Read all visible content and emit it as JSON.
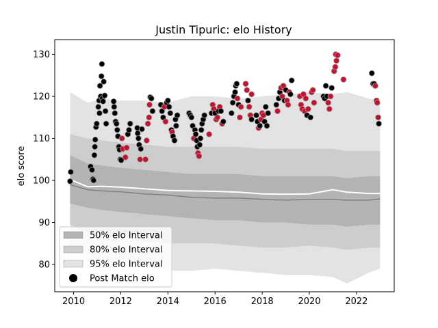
{
  "chart_data": {
    "type": "scatter",
    "title": "Justin Tipuric: elo History",
    "xlabel": "",
    "ylabel": "elo score",
    "xlim": [
      2009.2,
      2023.6
    ],
    "ylim": [
      73.5,
      133.5
    ],
    "xticks": [
      2010,
      2012,
      2014,
      2016,
      2018,
      2020,
      2022
    ],
    "yticks": [
      80,
      90,
      100,
      110,
      120,
      130
    ],
    "grid": false,
    "legend_position": "lower-left",
    "colors": {
      "band95": "#e3e3e3",
      "band80": "#cdcdcd",
      "band50": "#b3b3b3",
      "median": "#808080",
      "mean": "#ffffff",
      "post_match": "#000000",
      "win_point": "#c8102e",
      "point_edge": "#9a9a9a"
    },
    "legend": [
      {
        "label": "50% elo Interval",
        "color": "#b3b3b3"
      },
      {
        "label": "80% elo Interval",
        "color": "#cdcdcd"
      },
      {
        "label": "95% elo Interval",
        "color": "#e3e3e3"
      },
      {
        "label": "Post Match elo",
        "color": "#000000"
      }
    ],
    "bands": {
      "x": [
        2009.85,
        2010.6,
        2011.2,
        2012.0,
        2013.0,
        2014.0,
        2015.0,
        2016.0,
        2017.0,
        2018.0,
        2019.0,
        2020.0,
        2021.0,
        2021.6,
        2022.5,
        2023.0
      ],
      "p025": [
        84.5,
        82.0,
        81.0,
        80.0,
        79.5,
        78.5,
        78.5,
        79.0,
        78.5,
        78.0,
        77.5,
        77.5,
        77.0,
        75.5,
        78.0,
        79.0
      ],
      "p10": [
        89.5,
        87.5,
        87.0,
        86.5,
        85.5,
        85.0,
        85.0,
        85.0,
        84.5,
        84.0,
        84.0,
        84.5,
        84.0,
        83.5,
        84.0,
        84.0
      ],
      "p25": [
        94.5,
        93.5,
        93.0,
        92.5,
        92.0,
        91.5,
        91.0,
        90.5,
        90.5,
        90.0,
        90.0,
        89.5,
        89.5,
        89.0,
        89.5,
        89.5
      ],
      "median": [
        99.0,
        97.8,
        97.5,
        97.3,
        96.8,
        96.5,
        96.0,
        95.8,
        95.8,
        95.5,
        95.3,
        95.5,
        95.5,
        95.3,
        95.3,
        95.6
      ],
      "mean": [
        100.2,
        98.5,
        98.6,
        98.4,
        98.0,
        97.6,
        97.5,
        97.4,
        97.2,
        96.8,
        96.7,
        96.8,
        97.8,
        97.2,
        96.9,
        96.9
      ],
      "p75": [
        106.0,
        104.0,
        103.5,
        103.0,
        102.5,
        102.0,
        101.5,
        101.5,
        101.5,
        101.0,
        101.0,
        101.0,
        101.0,
        100.5,
        101.0,
        101.0
      ],
      "p90": [
        111.0,
        110.0,
        109.5,
        109.0,
        108.5,
        108.0,
        108.0,
        108.0,
        108.0,
        107.5,
        107.5,
        107.5,
        107.5,
        107.0,
        107.0,
        107.0
      ],
      "p975": [
        121.0,
        118.5,
        119.5,
        119.0,
        119.0,
        118.5,
        120.0,
        120.0,
        119.5,
        120.0,
        120.5,
        121.0,
        120.5,
        121.0,
        119.5,
        119.0
      ]
    },
    "series": [
      {
        "name": "Post Match elo",
        "points": [
          [
            2009.85,
            99.8,
            0
          ],
          [
            2009.88,
            102.0,
            0
          ],
          [
            2010.72,
            103.3,
            0
          ],
          [
            2010.78,
            102.5,
            0
          ],
          [
            2010.82,
            100.3,
            0
          ],
          [
            2010.85,
            100.0,
            0
          ],
          [
            2010.88,
            106.0,
            0
          ],
          [
            2010.9,
            108.0,
            0
          ],
          [
            2010.92,
            109.7,
            0
          ],
          [
            2010.95,
            112.7,
            0
          ],
          [
            2010.98,
            113.5,
            0
          ],
          [
            2011.05,
            117.5,
            0
          ],
          [
            2011.08,
            119.0,
            0
          ],
          [
            2011.1,
            116.0,
            0
          ],
          [
            2011.12,
            122.5,
            0
          ],
          [
            2011.15,
            120.0,
            0
          ],
          [
            2011.18,
            124.8,
            0
          ],
          [
            2011.2,
            127.7,
            0
          ],
          [
            2011.22,
            119.5,
            0
          ],
          [
            2011.25,
            118.8,
            0
          ],
          [
            2011.28,
            123.5,
            0
          ],
          [
            2011.32,
            120.2,
            0
          ],
          [
            2011.35,
            116.5,
            0
          ],
          [
            2011.38,
            113.5,
            0
          ],
          [
            2011.7,
            118.8,
            0
          ],
          [
            2011.72,
            117.5,
            0
          ],
          [
            2011.75,
            116.0,
            0
          ],
          [
            2011.78,
            114.0,
            0
          ],
          [
            2011.82,
            113.5,
            0
          ],
          [
            2011.85,
            112.0,
            0
          ],
          [
            2011.88,
            110.5,
            0
          ],
          [
            2011.92,
            108.0,
            0
          ],
          [
            2011.95,
            107.3,
            0
          ],
          [
            2011.98,
            105.0,
            0
          ],
          [
            2012.02,
            104.8,
            0
          ],
          [
            2012.05,
            110.0,
            1
          ],
          [
            2012.08,
            107.5,
            1
          ],
          [
            2012.2,
            105.5,
            1
          ],
          [
            2012.25,
            107.8,
            1
          ],
          [
            2012.3,
            111.0,
            0
          ],
          [
            2012.35,
            112.0,
            0
          ],
          [
            2012.4,
            113.5,
            0
          ],
          [
            2012.7,
            112.5,
            0
          ],
          [
            2012.72,
            111.2,
            0
          ],
          [
            2012.75,
            110.0,
            0
          ],
          [
            2012.78,
            108.5,
            0
          ],
          [
            2012.82,
            105.0,
            1
          ],
          [
            2012.85,
            107.5,
            0
          ],
          [
            2012.9,
            112.2,
            0
          ],
          [
            2013.05,
            105.0,
            1
          ],
          [
            2013.1,
            109.5,
            1
          ],
          [
            2013.15,
            113.5,
            1
          ],
          [
            2013.2,
            115.0,
            1
          ],
          [
            2013.22,
            118.0,
            1
          ],
          [
            2013.25,
            119.8,
            0
          ],
          [
            2013.3,
            119.5,
            0
          ],
          [
            2013.35,
            116.5,
            0
          ],
          [
            2013.7,
            118.0,
            0
          ],
          [
            2013.75,
            116.5,
            0
          ],
          [
            2013.8,
            115.0,
            0
          ],
          [
            2013.85,
            117.5,
            1
          ],
          [
            2013.9,
            114.0,
            1
          ],
          [
            2013.95,
            118.5,
            0
          ],
          [
            2014.0,
            119.0,
            0
          ],
          [
            2014.05,
            117.5,
            0
          ],
          [
            2014.1,
            116.0,
            0
          ],
          [
            2014.15,
            112.0,
            0
          ],
          [
            2014.18,
            111.5,
            1
          ],
          [
            2014.22,
            110.5,
            0
          ],
          [
            2014.28,
            109.5,
            0
          ],
          [
            2014.32,
            114.5,
            0
          ],
          [
            2014.35,
            113.0,
            0
          ],
          [
            2014.4,
            115.5,
            0
          ],
          [
            2014.9,
            116.0,
            0
          ],
          [
            2014.95,
            115.5,
            0
          ],
          [
            2015.0,
            115.0,
            0
          ],
          [
            2015.05,
            113.0,
            0
          ],
          [
            2015.1,
            110.0,
            1
          ],
          [
            2015.15,
            112.0,
            0
          ],
          [
            2015.18,
            111.0,
            0
          ],
          [
            2015.22,
            109.5,
            0
          ],
          [
            2015.25,
            108.0,
            0
          ],
          [
            2015.28,
            106.5,
            1
          ],
          [
            2015.32,
            105.8,
            1
          ],
          [
            2015.35,
            108.5,
            0
          ],
          [
            2015.38,
            110.0,
            0
          ],
          [
            2015.42,
            112.0,
            0
          ],
          [
            2015.45,
            113.5,
            0
          ],
          [
            2015.5,
            114.5,
            0
          ],
          [
            2015.55,
            115.5,
            0
          ],
          [
            2015.75,
            111.0,
            1
          ],
          [
            2015.85,
            116.0,
            0
          ],
          [
            2015.9,
            118.0,
            1
          ],
          [
            2015.95,
            117.0,
            1
          ],
          [
            2016.0,
            116.0,
            0
          ],
          [
            2016.05,
            114.5,
            1
          ],
          [
            2016.1,
            115.0,
            1
          ],
          [
            2016.15,
            116.5,
            0
          ],
          [
            2016.2,
            117.5,
            1
          ],
          [
            2016.25,
            116.5,
            0
          ],
          [
            2016.3,
            113.5,
            1
          ],
          [
            2016.35,
            114.0,
            0
          ],
          [
            2016.7,
            116.0,
            0
          ],
          [
            2016.75,
            118.5,
            0
          ],
          [
            2016.8,
            120.0,
            0
          ],
          [
            2016.85,
            121.0,
            0
          ],
          [
            2016.88,
            122.5,
            0
          ],
          [
            2016.92,
            123.0,
            0
          ],
          [
            2016.95,
            119.5,
            1
          ],
          [
            2017.0,
            118.0,
            0
          ],
          [
            2017.05,
            115.0,
            1
          ],
          [
            2017.1,
            117.5,
            1
          ],
          [
            2017.3,
            123.0,
            1
          ],
          [
            2017.35,
            121.5,
            1
          ],
          [
            2017.4,
            119.0,
            0
          ],
          [
            2017.45,
            117.5,
            1
          ],
          [
            2017.5,
            115.5,
            1
          ],
          [
            2017.55,
            114.5,
            0
          ],
          [
            2017.55,
            120.5,
            1
          ],
          [
            2017.75,
            115.5,
            0
          ],
          [
            2017.8,
            114.0,
            0
          ],
          [
            2017.85,
            112.5,
            1
          ],
          [
            2017.9,
            113.0,
            0
          ],
          [
            2017.95,
            114.5,
            1
          ],
          [
            2018.0,
            116.0,
            1
          ],
          [
            2018.05,
            115.5,
            1
          ],
          [
            2018.1,
            114.0,
            0
          ],
          [
            2018.15,
            117.5,
            0
          ],
          [
            2018.2,
            113.0,
            0
          ],
          [
            2018.25,
            116.0,
            0
          ],
          [
            2018.6,
            118.0,
            0
          ],
          [
            2018.65,
            116.5,
            1
          ],
          [
            2018.7,
            119.5,
            0
          ],
          [
            2018.75,
            121.0,
            0
          ],
          [
            2018.8,
            122.0,
            1
          ],
          [
            2018.85,
            120.0,
            1
          ],
          [
            2018.9,
            122.5,
            1
          ],
          [
            2018.95,
            119.0,
            0
          ],
          [
            2019.0,
            121.5,
            0
          ],
          [
            2019.05,
            119.0,
            1
          ],
          [
            2019.1,
            118.0,
            1
          ],
          [
            2019.15,
            121.0,
            1
          ],
          [
            2019.2,
            120.5,
            0
          ],
          [
            2019.25,
            123.8,
            0
          ],
          [
            2019.6,
            120.0,
            1
          ],
          [
            2019.65,
            118.0,
            1
          ],
          [
            2019.7,
            117.0,
            1
          ],
          [
            2019.75,
            120.5,
            1
          ],
          [
            2019.8,
            116.5,
            1
          ],
          [
            2019.85,
            119.5,
            1
          ],
          [
            2019.9,
            115.5,
            0
          ],
          [
            2019.95,
            117.0,
            1
          ],
          [
            2020.05,
            115.0,
            0
          ],
          [
            2020.1,
            121.0,
            1
          ],
          [
            2020.15,
            121.5,
            1
          ],
          [
            2020.2,
            118.5,
            1
          ],
          [
            2020.6,
            120.0,
            0
          ],
          [
            2020.65,
            119.5,
            0
          ],
          [
            2020.7,
            122.5,
            0
          ],
          [
            2020.75,
            120.0,
            0
          ],
          [
            2020.8,
            118.5,
            1
          ],
          [
            2020.85,
            117.0,
            1
          ],
          [
            2020.9,
            120.0,
            1
          ],
          [
            2020.95,
            122.0,
            0
          ],
          [
            2021.05,
            126.0,
            1
          ],
          [
            2021.1,
            127.0,
            1
          ],
          [
            2021.12,
            130.0,
            1
          ],
          [
            2021.15,
            128.5,
            1
          ],
          [
            2021.2,
            129.8,
            1
          ],
          [
            2021.45,
            124.0,
            1
          ],
          [
            2022.65,
            125.5,
            0
          ],
          [
            2022.7,
            123.0,
            0
          ],
          [
            2022.75,
            123.0,
            0
          ],
          [
            2022.8,
            122.5,
            1
          ],
          [
            2022.85,
            119.0,
            1
          ],
          [
            2022.88,
            118.5,
            1
          ],
          [
            2022.92,
            115.0,
            1
          ],
          [
            2022.95,
            113.5,
            0
          ]
        ]
      }
    ]
  }
}
